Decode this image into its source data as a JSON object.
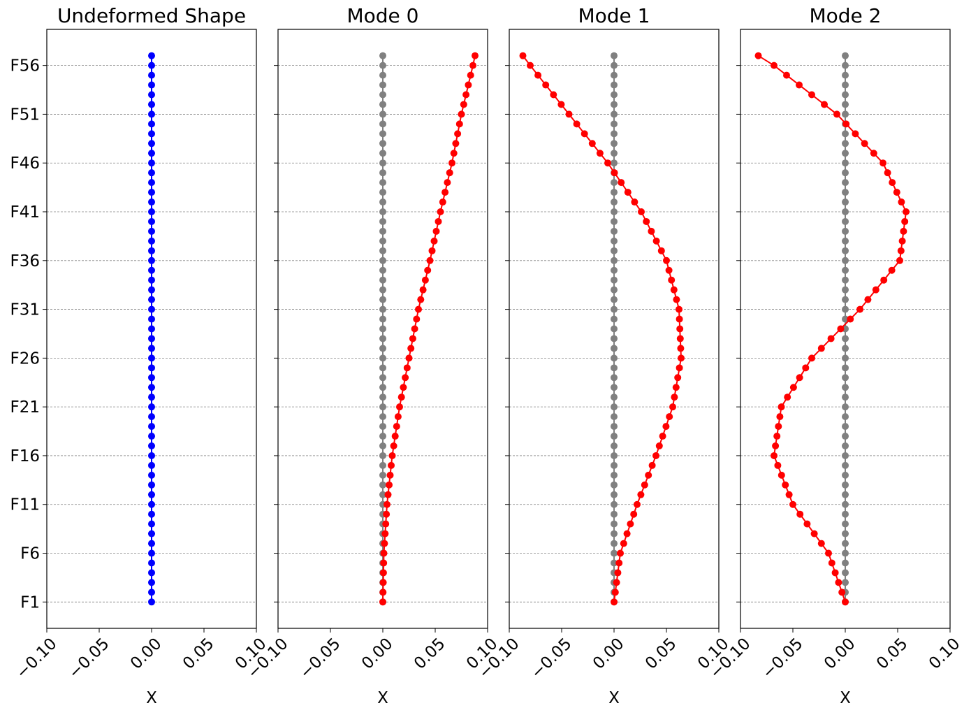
{
  "colors": {
    "undeformed": "#0000ff",
    "reference": "#808080",
    "mode": "#ff0000",
    "grid": "#808080"
  },
  "chart_data": [
    {
      "type": "line",
      "title": "Undeformed Shape",
      "xlabel": "X",
      "ylabel": "",
      "xlim": [
        -0.1,
        0.1
      ],
      "ylim": [
        -1.7,
        59.7
      ],
      "grid": "horizontal dashed",
      "legend": "none",
      "x_ticks": [
        "−0.10",
        "−0.05",
        "0.00",
        "0.05",
        "0.10"
      ],
      "y_ticks": [
        "F1",
        "F6",
        "F11",
        "F16",
        "F21",
        "F26",
        "F31",
        "F36",
        "F41",
        "F46",
        "F51",
        "F56"
      ],
      "series": [
        {
          "color": "#0000ff",
          "x_constant": 0.0,
          "y_from": 1,
          "y_to": 57
        }
      ]
    },
    {
      "type": "line",
      "title": "Mode 0",
      "xlabel": "X",
      "ylabel": "",
      "xlim": [
        -0.1,
        0.1
      ],
      "ylim": [
        -1.7,
        59.7
      ],
      "grid": "horizontal dashed",
      "legend": "none",
      "x_ticks": [
        "−0.10",
        "−0.05",
        "0.00",
        "0.05",
        "0.10"
      ],
      "series": [
        {
          "color": "#808080",
          "x_constant": 0.0,
          "y_from": 1,
          "y_to": 57
        },
        {
          "color": "#ff0000",
          "anchors": [
            [
              1,
              0.0
            ],
            [
              6,
              0.001
            ],
            [
              11,
              0.004
            ],
            [
              16,
              0.009
            ],
            [
              21,
              0.016
            ],
            [
              26,
              0.025
            ],
            [
              31,
              0.034
            ],
            [
              36,
              0.045
            ],
            [
              41,
              0.055
            ],
            [
              46,
              0.066
            ],
            [
              51,
              0.075
            ],
            [
              56,
              0.086
            ],
            [
              57,
              0.088
            ]
          ]
        }
      ]
    },
    {
      "type": "line",
      "title": "Mode 1",
      "xlabel": "X",
      "ylabel": "",
      "xlim": [
        -0.1,
        0.1
      ],
      "ylim": [
        -1.7,
        59.7
      ],
      "grid": "horizontal dashed",
      "legend": "none",
      "x_ticks": [
        "−0.10",
        "−0.05",
        "0.00",
        "0.05",
        "0.10"
      ],
      "series": [
        {
          "color": "#808080",
          "x_constant": 0.0,
          "y_from": 1,
          "y_to": 57
        },
        {
          "color": "#ff0000",
          "anchors": [
            [
              1,
              0.0
            ],
            [
              6,
              0.006
            ],
            [
              11,
              0.022
            ],
            [
              16,
              0.04
            ],
            [
              21,
              0.056
            ],
            [
              26,
              0.064
            ],
            [
              31,
              0.062
            ],
            [
              36,
              0.05
            ],
            [
              41,
              0.026
            ],
            [
              46,
              -0.006
            ],
            [
              51,
              -0.043
            ],
            [
              56,
              -0.08
            ],
            [
              57,
              -0.087
            ]
          ]
        }
      ]
    },
    {
      "type": "line",
      "title": "Mode 2",
      "xlabel": "X",
      "ylabel": "",
      "xlim": [
        -0.1,
        0.1
      ],
      "ylim": [
        -1.7,
        59.7
      ],
      "grid": "horizontal dashed",
      "legend": "none",
      "x_ticks": [
        "−0.10",
        "−0.05",
        "0.00",
        "0.05",
        "0.10"
      ],
      "series": [
        {
          "color": "#808080",
          "x_constant": 0.0,
          "y_from": 1,
          "y_to": 57
        },
        {
          "color": "#ff0000",
          "anchors": [
            [
              1,
              0.0
            ],
            [
              6,
              -0.016
            ],
            [
              11,
              -0.05
            ],
            [
              16,
              -0.068
            ],
            [
              21,
              -0.061
            ],
            [
              26,
              -0.032
            ],
            [
              31,
              0.014
            ],
            [
              36,
              0.052
            ],
            [
              41,
              0.058
            ],
            [
              46,
              0.036
            ],
            [
              51,
              -0.008
            ],
            [
              56,
              -0.068
            ],
            [
              57,
              -0.083
            ]
          ]
        }
      ]
    }
  ]
}
